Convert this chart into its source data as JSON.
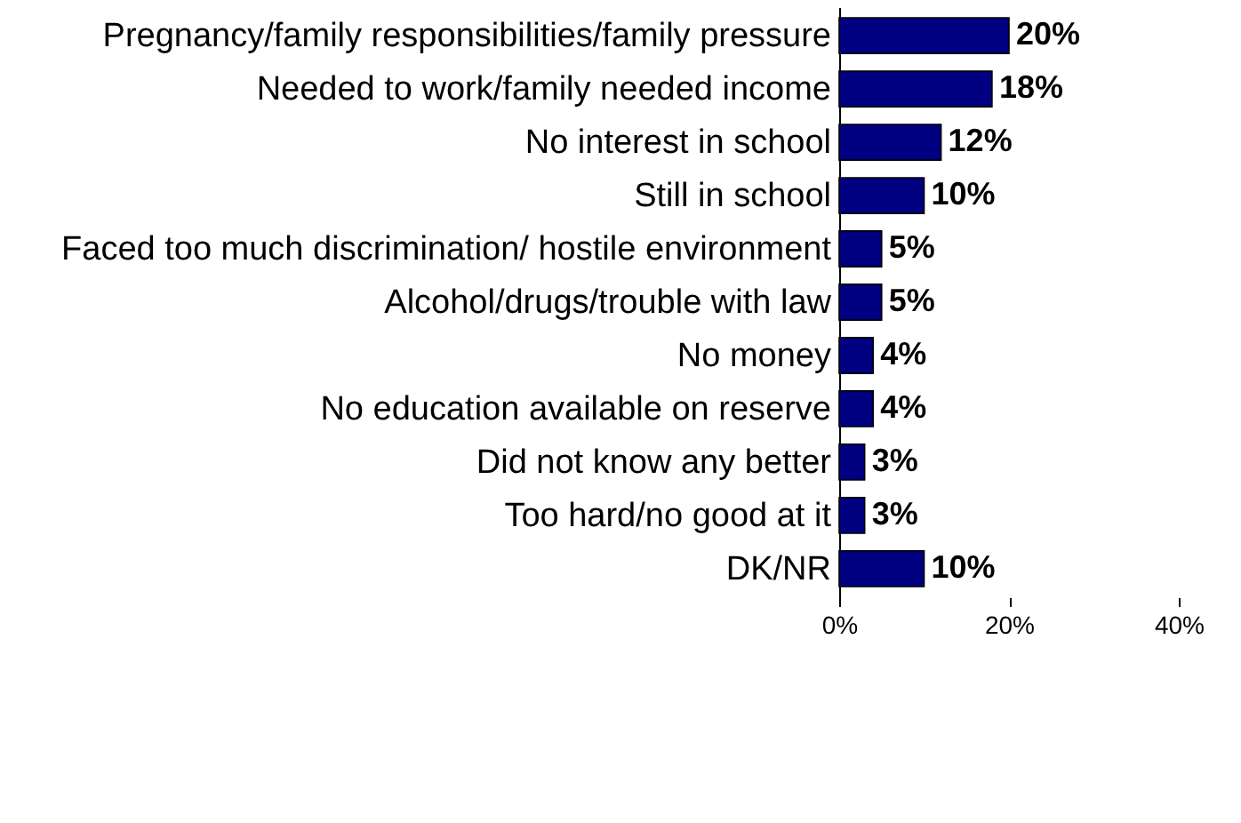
{
  "chart_data": {
    "type": "bar",
    "orientation": "horizontal",
    "categories": [
      "Pregnancy/family responsibilities/family pressure",
      "Needed to work/family needed income",
      "No interest in school",
      "Still in school",
      "Faced too much discrimination/ hostile environment",
      "Alcohol/drugs/trouble with law",
      "No money",
      "No education available on reserve",
      "Did not know any better",
      "Too hard/no good at it",
      "DK/NR"
    ],
    "values": [
      20,
      18,
      12,
      10,
      5,
      5,
      4,
      4,
      3,
      3,
      10
    ],
    "value_labels": [
      "20%",
      "18%",
      "12%",
      "10%",
      "5%",
      "5%",
      "4%",
      "4%",
      "3%",
      "3%",
      "10%"
    ],
    "color": "#000080",
    "xlim": [
      0,
      40
    ],
    "xticks": [
      {
        "value": 0,
        "label": "0%"
      },
      {
        "value": 20,
        "label": "20%"
      },
      {
        "value": 40,
        "label": "40%"
      }
    ],
    "grid": false
  }
}
